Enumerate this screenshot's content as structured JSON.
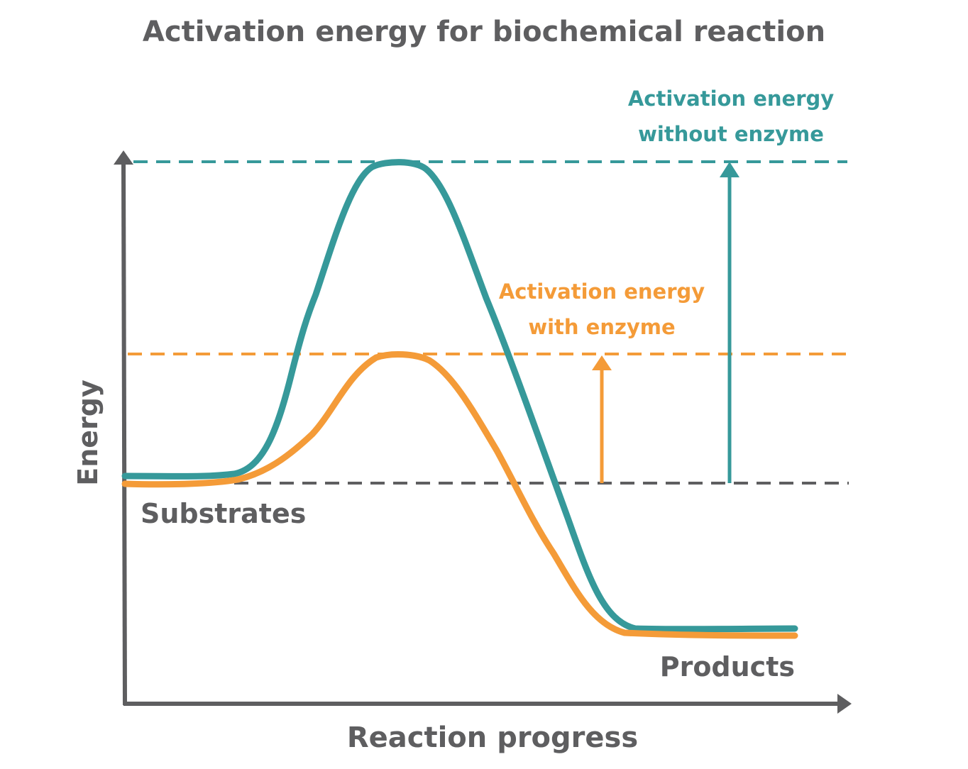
{
  "diagram": {
    "title": "Activation energy for biochemical reaction",
    "y_axis_label": "Energy",
    "x_axis_label": "Reaction progress",
    "substrates_label": "Substrates",
    "products_label": "Products",
    "without_enzyme": {
      "label_line1": "Activation energy",
      "label_line2": "without enzyme"
    },
    "with_enzyme": {
      "label_line1": "Activation energy",
      "label_line2": "with enzyme"
    }
  },
  "colors": {
    "teal": "#36999a",
    "orange": "#f49b38",
    "gray": "#5e5e60",
    "background": "#ffffff"
  }
}
